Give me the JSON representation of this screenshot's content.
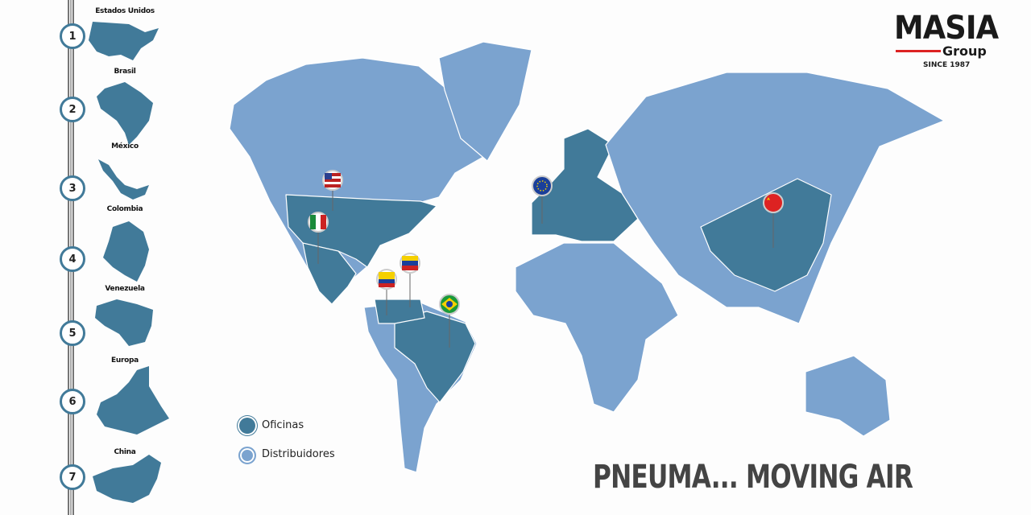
{
  "colors": {
    "oficinas": "#417a99",
    "distribuidores": "#7ba3cf",
    "accent_red": "#d22222"
  },
  "logo": {
    "name": "MASIA",
    "sub": "Group",
    "since": "SINCE 1987"
  },
  "timeline": [
    {
      "number": "1",
      "label": "Estados Unidos"
    },
    {
      "number": "2",
      "label": "Brasil"
    },
    {
      "number": "3",
      "label": "México"
    },
    {
      "number": "4",
      "label": "Colombia"
    },
    {
      "number": "5",
      "label": "Venezuela"
    },
    {
      "number": "6",
      "label": "Europa"
    },
    {
      "number": "7",
      "label": "China"
    }
  ],
  "legend": {
    "oficinas": "Oficinas",
    "distribuidores": "Distribuidores"
  },
  "slogan": "PNEUMA... MOVING AIR",
  "map_pins": [
    "usa-flag",
    "mexico-flag",
    "colombia-flag",
    "venezuela-flag",
    "brazil-flag",
    "eu-flag",
    "china-flag"
  ]
}
